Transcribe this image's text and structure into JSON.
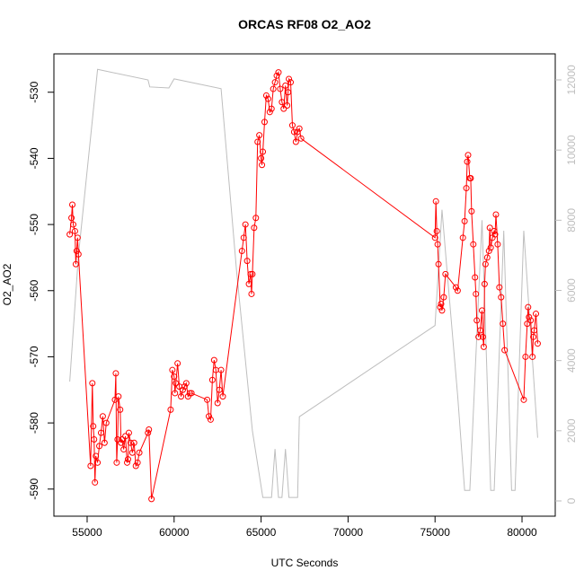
{
  "chart_data": {
    "type": "line",
    "title": "ORCAS RF08 O2_AO2",
    "x_label": "UTC Seconds",
    "y_label": "O2_AO2",
    "xlim": [
      53090,
      81910
    ],
    "xticks": [
      55000,
      60000,
      65000,
      70000,
      75000,
      80000
    ],
    "ylim": [
      -594.1,
      -524.2
    ],
    "yticks": [
      -590,
      -580,
      -570,
      -560,
      -550,
      -540,
      -530
    ],
    "y2lim": [
      -435,
      12742
    ],
    "y2ticks": [
      0,
      2000,
      4000,
      6000,
      8000,
      10000,
      12000
    ],
    "series": [
      {
        "color": "#ff0000",
        "marker": "open-circle",
        "x": [
          54000,
          54100,
          54150,
          54200,
          54300,
          54350,
          54400,
          54450,
          54500,
          55200,
          55300,
          55350,
          55400,
          55450,
          55500,
          55600,
          55700,
          55800,
          55900,
          56000,
          56100,
          56600,
          56650,
          56700,
          56750,
          56800,
          56900,
          56950,
          57000,
          57100,
          57200,
          57300,
          57350,
          57400,
          57500,
          57600,
          57700,
          57800,
          57900,
          58000,
          58500,
          58550,
          58700,
          59800,
          59900,
          60000,
          60050,
          60100,
          60200,
          60300,
          60400,
          60500,
          60600,
          60700,
          60800,
          60900,
          61000,
          61900,
          62000,
          62100,
          62200,
          62300,
          62400,
          62500,
          62600,
          62700,
          62800,
          63900,
          64000,
          64100,
          64200,
          64300,
          64400,
          64450,
          64500,
          64600,
          64700,
          64800,
          64900,
          65000,
          65050,
          65100,
          65200,
          65300,
          65400,
          65500,
          65600,
          65700,
          65800,
          65900,
          66000,
          66100,
          66200,
          66300,
          66400,
          66500,
          66550,
          66600,
          66700,
          66800,
          66900,
          67000,
          67100,
          67200,
          67300,
          75000,
          75050,
          75100,
          75150,
          75200,
          75300,
          75350,
          75400,
          75500,
          75600,
          76200,
          76300,
          76600,
          76700,
          76800,
          76850,
          76900,
          77000,
          77050,
          77100,
          77200,
          77300,
          77350,
          77400,
          77500,
          77600,
          77700,
          77750,
          77800,
          77850,
          77900,
          78000,
          78100,
          78150,
          78200,
          78300,
          78400,
          78450,
          78500,
          78600,
          78700,
          78800,
          78900,
          79000,
          80100,
          80200,
          80300,
          80350,
          80400,
          80500,
          80600,
          80650,
          80700,
          80800,
          80900
        ],
        "values": [
          -551.5,
          -549,
          -547,
          -550,
          -551,
          -556,
          -554,
          -552,
          -554.5,
          -586.5,
          -574,
          -580.5,
          -582.5,
          -589,
          -585,
          -586,
          -583.5,
          -581.5,
          -579,
          -583,
          -580,
          -576.5,
          -572.5,
          -586,
          -582.5,
          -576,
          -578,
          -583,
          -582.5,
          -584,
          -582,
          -586,
          -585.5,
          -581.5,
          -583,
          -584.5,
          -583,
          -586.5,
          -586,
          -584.5,
          -581.5,
          -581,
          -591.5,
          -578,
          -572,
          -573,
          -575.5,
          -574,
          -571,
          -574.5,
          -576,
          -575,
          -574.5,
          -574,
          -576,
          -575.5,
          -575.5,
          -576.5,
          -579,
          -579.5,
          -573.5,
          -570.5,
          -572,
          -577,
          -575,
          -572,
          -576,
          -554,
          -552,
          -550,
          -555.5,
          -559,
          -557.5,
          -560.5,
          -557.5,
          -550.5,
          -549,
          -537.5,
          -536.5,
          -540,
          -541,
          -539,
          -534.5,
          -530.5,
          -531,
          -533,
          -532.5,
          -529.5,
          -528.5,
          -527.5,
          -527,
          -529.5,
          -531.5,
          -532.5,
          -529,
          -532,
          -530,
          -528,
          -528.5,
          -535,
          -536,
          -537.5,
          -536,
          -535.5,
          -537,
          -552,
          -546.5,
          -551,
          -553,
          -556,
          -562.5,
          -562,
          -563,
          -561,
          -557.5,
          -559.5,
          -560,
          -552,
          -549.5,
          -544.5,
          -540.5,
          -539.5,
          -543,
          -543,
          -548,
          -553,
          -558,
          -560.5,
          -564.5,
          -567,
          -566,
          -563,
          -567,
          -568.5,
          -559,
          -556,
          -555,
          -554,
          -550.5,
          -553.5,
          -552,
          -551,
          -551.5,
          -548.5,
          -553,
          -559.5,
          -561,
          -565,
          -569,
          -576.5,
          -570,
          -565,
          -562.5,
          -564,
          -564.5,
          -570,
          -567,
          -566,
          -563.5,
          -568
        ]
      },
      {
        "color": "#bebebe",
        "axis": "y2",
        "x": [
          54000,
          54500,
          55600,
          58500,
          58600,
          59700,
          60000,
          62700,
          63600,
          64500,
          65100,
          65400,
          65600,
          65800,
          66000,
          66200,
          66400,
          66600,
          67100,
          67200,
          75000,
          75400,
          75700,
          76300,
          76700,
          76900,
          77000,
          77700,
          78200,
          78400,
          78950,
          79400,
          79600,
          80100,
          80900
        ],
        "values": [
          3400,
          7000,
          12300,
          12000,
          11800,
          11770,
          12030,
          11750,
          6500,
          2000,
          100,
          100,
          100,
          1480,
          100,
          100,
          1480,
          100,
          100,
          2400,
          5000,
          8300,
          6500,
          3000,
          300,
          300,
          300,
          8000,
          300,
          300,
          7700,
          300,
          300,
          7700,
          1800
        ]
      }
    ]
  }
}
